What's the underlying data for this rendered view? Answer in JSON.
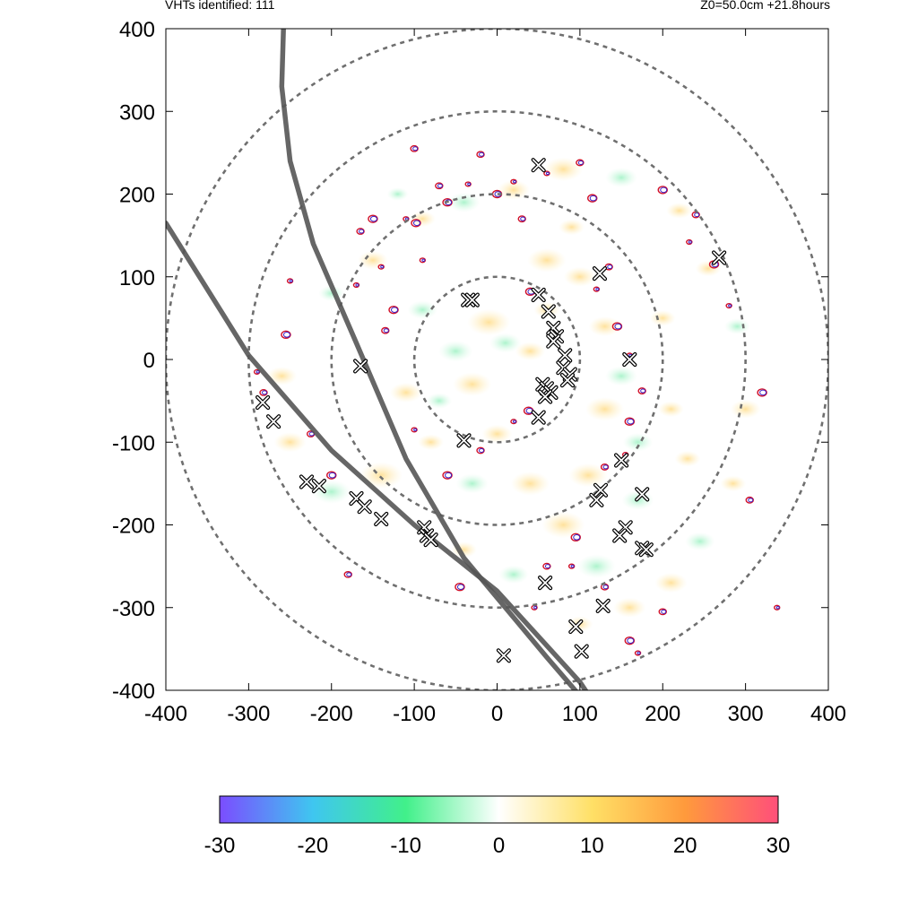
{
  "header": {
    "left_text": "VHTs identified: 111",
    "right_text": "Z0=50.0cm  +21.8hours"
  },
  "chart_data": {
    "type": "scatter",
    "title": "",
    "xlabel": "",
    "ylabel": "",
    "xlim": [
      -400,
      400
    ],
    "ylim": [
      -400,
      400
    ],
    "x_ticks": [
      "-400",
      "-300",
      "-200",
      "-100",
      "0",
      "100",
      "200",
      "300",
      "400"
    ],
    "y_ticks": [
      "400",
      "300",
      "200",
      "100",
      "0",
      "-100",
      "-200",
      "-300",
      "-400"
    ],
    "grid": false,
    "range_rings": [
      100,
      200,
      300,
      400
    ],
    "colorbar": {
      "range": [
        -30,
        30
      ],
      "tick_labels": [
        "-30",
        "-20",
        "-10",
        "0",
        "10",
        "20",
        "30"
      ],
      "colors": [
        "#7b4dff",
        "#3fc6f0",
        "#41f08a",
        "#ffffff",
        "#ffe066",
        "#ff9a3c",
        "#ff4f7a"
      ]
    },
    "series": [
      {
        "values": [
          [
            -35,
            72
          ],
          [
            -30,
            72
          ],
          [
            50,
            235
          ],
          [
            124,
            104
          ],
          [
            268,
            123
          ],
          [
            50,
            78
          ],
          [
            62,
            58
          ],
          [
            68,
            38
          ],
          [
            72,
            28
          ],
          [
            68,
            22
          ],
          [
            82,
            5
          ],
          [
            80,
            -10
          ],
          [
            88,
            -18
          ],
          [
            85,
            -25
          ],
          [
            160,
            0
          ],
          [
            55,
            -30
          ],
          [
            60,
            -35
          ],
          [
            65,
            -40
          ],
          [
            58,
            -45
          ],
          [
            50,
            -70
          ],
          [
            -165,
            -8
          ],
          [
            -40,
            -98
          ],
          [
            -283,
            -52
          ],
          [
            -270,
            -75
          ],
          [
            -230,
            -148
          ],
          [
            -215,
            -153
          ],
          [
            -170,
            -168
          ],
          [
            -160,
            -178
          ],
          [
            -140,
            -193
          ],
          [
            -88,
            -203
          ],
          [
            -85,
            -213
          ],
          [
            -80,
            -218
          ],
          [
            125,
            -158
          ],
          [
            120,
            -170
          ],
          [
            150,
            -122
          ],
          [
            175,
            -163
          ],
          [
            155,
            -203
          ],
          [
            148,
            -213
          ],
          [
            175,
            -228
          ],
          [
            180,
            -230
          ],
          [
            58,
            -270
          ],
          [
            128,
            -298
          ],
          [
            95,
            -323
          ],
          [
            102,
            -353
          ],
          [
            8,
            -358
          ]
        ]
      }
    ],
    "tracks": [
      {
        "values": [
          [
            -258,
            400
          ],
          [
            -260,
            330
          ],
          [
            -250,
            240
          ],
          [
            -222,
            140
          ],
          [
            -170,
            20
          ],
          [
            -110,
            -120
          ],
          [
            -40,
            -240
          ],
          [
            60,
            -360
          ],
          [
            120,
            -430
          ]
        ]
      },
      {
        "values": [
          [
            -400,
            165
          ],
          [
            -300,
            5
          ],
          [
            -200,
            -110
          ],
          [
            -100,
            -200
          ],
          [
            0,
            -280
          ],
          [
            100,
            -390
          ],
          [
            120,
            -420
          ]
        ]
      }
    ],
    "vortex_contours": [
      [
        -290,
        -15
      ],
      [
        -282,
        -40
      ],
      [
        -255,
        30
      ],
      [
        -250,
        95
      ],
      [
        -225,
        -90
      ],
      [
        -200,
        -140
      ],
      [
        -170,
        90
      ],
      [
        -165,
        155
      ],
      [
        -150,
        170
      ],
      [
        -140,
        112
      ],
      [
        -135,
        35
      ],
      [
        -125,
        60
      ],
      [
        -110,
        170
      ],
      [
        -100,
        255
      ],
      [
        -98,
        165
      ],
      [
        -90,
        120
      ],
      [
        -70,
        210
      ],
      [
        -60,
        190
      ],
      [
        -35,
        212
      ],
      [
        -20,
        248
      ],
      [
        0,
        200
      ],
      [
        20,
        215
      ],
      [
        30,
        170
      ],
      [
        40,
        82
      ],
      [
        60,
        225
      ],
      [
        100,
        238
      ],
      [
        115,
        195
      ],
      [
        120,
        85
      ],
      [
        135,
        112
      ],
      [
        145,
        40
      ],
      [
        160,
        5
      ],
      [
        175,
        -38
      ],
      [
        160,
        -75
      ],
      [
        155,
        -115
      ],
      [
        130,
        -130
      ],
      [
        95,
        -215
      ],
      [
        90,
        -250
      ],
      [
        60,
        -250
      ],
      [
        38,
        -62
      ],
      [
        20,
        -75
      ],
      [
        -20,
        -110
      ],
      [
        -60,
        -140
      ],
      [
        -100,
        -85
      ],
      [
        -180,
        -260
      ],
      [
        -45,
        -275
      ],
      [
        45,
        -300
      ],
      [
        130,
        -275
      ],
      [
        160,
        -340
      ],
      [
        170,
        -355
      ],
      [
        200,
        -305
      ],
      [
        200,
        205
      ],
      [
        232,
        142
      ],
      [
        240,
        175
      ],
      [
        262,
        115
      ],
      [
        280,
        65
      ],
      [
        305,
        -170
      ],
      [
        320,
        -40
      ],
      [
        338,
        -300
      ]
    ],
    "field_blobs": [
      [
        -10,
        45,
        20
      ],
      [
        10,
        20,
        15
      ],
      [
        -30,
        -30,
        18
      ],
      [
        40,
        10,
        14
      ],
      [
        -50,
        10,
        16
      ],
      [
        60,
        120,
        18
      ],
      [
        100,
        100,
        15
      ],
      [
        -90,
        60,
        14
      ],
      [
        -110,
        -40,
        15
      ],
      [
        -140,
        -140,
        20
      ],
      [
        -200,
        -160,
        18
      ],
      [
        -250,
        -100,
        15
      ],
      [
        -260,
        -20,
        14
      ],
      [
        -200,
        80,
        12
      ],
      [
        -150,
        120,
        14
      ],
      [
        -90,
        170,
        12
      ],
      [
        -40,
        190,
        15
      ],
      [
        20,
        205,
        15
      ],
      [
        80,
        230,
        18
      ],
      [
        150,
        220,
        15
      ],
      [
        220,
        180,
        12
      ],
      [
        255,
        110,
        12
      ],
      [
        290,
        40,
        12
      ],
      [
        300,
        -60,
        14
      ],
      [
        285,
        -150,
        12
      ],
      [
        245,
        -220,
        14
      ],
      [
        210,
        -270,
        15
      ],
      [
        160,
        -300,
        15
      ],
      [
        120,
        -250,
        18
      ],
      [
        80,
        -200,
        20
      ],
      [
        40,
        -150,
        18
      ],
      [
        -30,
        -150,
        15
      ],
      [
        -80,
        -100,
        12
      ],
      [
        130,
        -60,
        18
      ],
      [
        150,
        -20,
        15
      ],
      [
        130,
        40,
        15
      ],
      [
        110,
        -140,
        18
      ],
      [
        170,
        -100,
        14
      ],
      [
        210,
        -60,
        12
      ],
      [
        200,
        50,
        12
      ],
      [
        20,
        -260,
        14
      ],
      [
        -40,
        -230,
        12
      ],
      [
        100,
        -320,
        12
      ],
      [
        170,
        -170,
        15
      ],
      [
        230,
        -120,
        12
      ],
      [
        60,
        60,
        12
      ],
      [
        -70,
        -50,
        12
      ],
      [
        0,
        -90,
        14
      ],
      [
        90,
        160,
        12
      ],
      [
        -120,
        200,
        10
      ]
    ]
  }
}
